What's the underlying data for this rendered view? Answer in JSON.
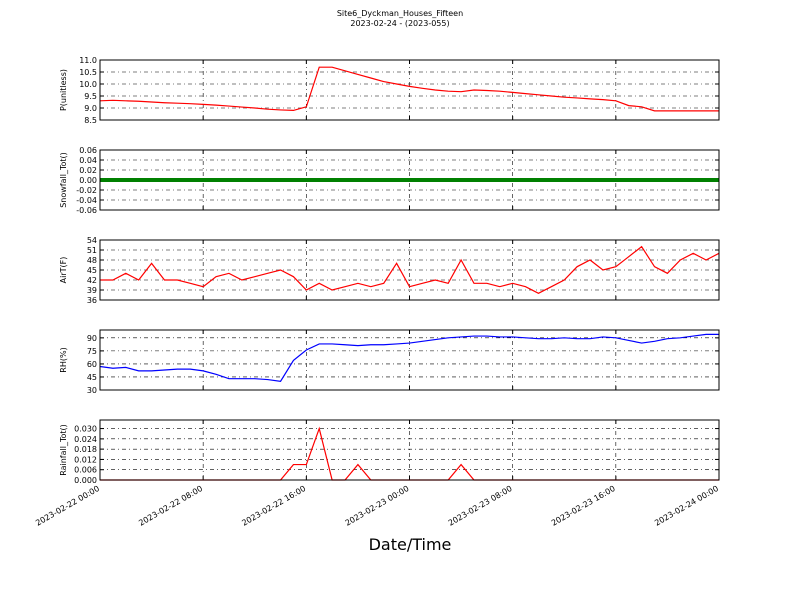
{
  "chart_data": [
    {
      "type": "line",
      "title": "Site6_Dyckman_Houses_Fifteen",
      "subtitle": "2023-02-24 - (2023-055)",
      "ylabel": "P(unitless)",
      "color": "#ff0000",
      "grid": true,
      "x": [
        "2023-02-22 00:00",
        "2023-02-22 01:00",
        "2023-02-22 02:00",
        "2023-02-22 03:00",
        "2023-02-22 04:00",
        "2023-02-22 05:00",
        "2023-02-22 06:00",
        "2023-02-22 07:00",
        "2023-02-22 08:00",
        "2023-02-22 09:00",
        "2023-02-22 10:00",
        "2023-02-22 11:00",
        "2023-02-22 12:00",
        "2023-02-22 13:00",
        "2023-02-22 14:00",
        "2023-02-22 15:00",
        "2023-02-22 16:00",
        "2023-02-22 17:00",
        "2023-02-22 18:00",
        "2023-02-22 19:00",
        "2023-02-22 20:00",
        "2023-02-22 21:00",
        "2023-02-22 22:00",
        "2023-02-22 23:00",
        "2023-02-23 00:00",
        "2023-02-23 01:00",
        "2023-02-23 02:00",
        "2023-02-23 03:00",
        "2023-02-23 04:00",
        "2023-02-23 05:00",
        "2023-02-23 06:00",
        "2023-02-23 07:00",
        "2023-02-23 08:00",
        "2023-02-23 09:00",
        "2023-02-23 10:00",
        "2023-02-23 11:00",
        "2023-02-23 12:00",
        "2023-02-23 13:00",
        "2023-02-23 14:00",
        "2023-02-23 15:00",
        "2023-02-23 16:00",
        "2023-02-23 17:00",
        "2023-02-23 18:00",
        "2023-02-23 19:00",
        "2023-02-23 20:00",
        "2023-02-23 21:00",
        "2023-02-23 22:00",
        "2023-02-23 23:00",
        "2023-02-24 00:00"
      ],
      "values": [
        9.3,
        9.32,
        9.3,
        9.28,
        9.25,
        9.22,
        9.2,
        9.18,
        9.15,
        9.12,
        9.08,
        9.04,
        9.0,
        8.95,
        8.92,
        8.9,
        9.05,
        10.7,
        10.7,
        10.55,
        10.4,
        10.25,
        10.1,
        10.0,
        9.9,
        9.82,
        9.75,
        9.7,
        9.68,
        9.75,
        9.73,
        9.7,
        9.65,
        9.6,
        9.55,
        9.5,
        9.45,
        9.42,
        9.38,
        9.35,
        9.3,
        9.1,
        9.05,
        8.88,
        8.88,
        8.88,
        8.88,
        8.88,
        8.88
      ],
      "xlim": [
        "2023-02-22 00:00",
        "2023-02-24 00:00"
      ],
      "xticks": [
        "2023-02-22 00:00",
        "2023-02-22 08:00",
        "2023-02-22 16:00",
        "2023-02-23 00:00",
        "2023-02-23 08:00",
        "2023-02-23 16:00",
        "2023-02-24 00:00"
      ],
      "ylim": [
        8.5,
        11.0
      ],
      "yticks": [
        8.5,
        {
          "value": 9,
          "label": "9.0"
        },
        9.5,
        {
          "value": 10,
          "label": "10.0"
        },
        10.5,
        {
          "value": 11,
          "label": "11.0"
        }
      ]
    },
    {
      "type": "line",
      "ylabel": "Snowfall_Tot()",
      "color": "#008000",
      "grid": true,
      "x": [
        "2023-02-22 00:00",
        "2023-02-22 01:00",
        "2023-02-22 02:00",
        "2023-02-22 03:00",
        "2023-02-22 04:00",
        "2023-02-22 05:00",
        "2023-02-22 06:00",
        "2023-02-22 07:00",
        "2023-02-22 08:00",
        "2023-02-22 09:00",
        "2023-02-22 10:00",
        "2023-02-22 11:00",
        "2023-02-22 12:00",
        "2023-02-22 13:00",
        "2023-02-22 14:00",
        "2023-02-22 15:00",
        "2023-02-22 16:00",
        "2023-02-22 17:00",
        "2023-02-22 18:00",
        "2023-02-22 19:00",
        "2023-02-22 20:00",
        "2023-02-22 21:00",
        "2023-02-22 22:00",
        "2023-02-22 23:00",
        "2023-02-23 00:00",
        "2023-02-23 01:00",
        "2023-02-23 02:00",
        "2023-02-23 03:00",
        "2023-02-23 04:00",
        "2023-02-23 05:00",
        "2023-02-23 06:00",
        "2023-02-23 07:00",
        "2023-02-23 08:00",
        "2023-02-23 09:00",
        "2023-02-23 10:00",
        "2023-02-23 11:00",
        "2023-02-23 12:00",
        "2023-02-23 13:00",
        "2023-02-23 14:00",
        "2023-02-23 15:00",
        "2023-02-23 16:00",
        "2023-02-23 17:00",
        "2023-02-23 18:00",
        "2023-02-23 19:00",
        "2023-02-23 20:00",
        "2023-02-23 21:00",
        "2023-02-23 22:00",
        "2023-02-23 23:00",
        "2023-02-24 00:00"
      ],
      "values": [
        0,
        0,
        0,
        0,
        0,
        0,
        0,
        0,
        0,
        0,
        0,
        0,
        0,
        0,
        0,
        0,
        0,
        0,
        0,
        0,
        0,
        0,
        0,
        0,
        0,
        0,
        0,
        0,
        0,
        0,
        0,
        0,
        0,
        0,
        0,
        0,
        0,
        0,
        0,
        0,
        0,
        0,
        0,
        0,
        0,
        0,
        0,
        0,
        0
      ],
      "xlim": [
        "2023-02-22 00:00",
        "2023-02-24 00:00"
      ],
      "xticks": [
        "2023-02-22 00:00",
        "2023-02-22 08:00",
        "2023-02-22 16:00",
        "2023-02-23 00:00",
        "2023-02-23 08:00",
        "2023-02-23 16:00",
        "2023-02-24 00:00"
      ],
      "ylim": [
        -0.06,
        0.06
      ],
      "yticks": [
        -0.06,
        -0.04,
        -0.02,
        {
          "value": 0,
          "label": "0.00"
        },
        0.02,
        0.04,
        0.06
      ]
    },
    {
      "type": "line",
      "ylabel": "AirT(F)",
      "color": "#ff0000",
      "grid": true,
      "x": [
        "2023-02-22 00:00",
        "2023-02-22 01:00",
        "2023-02-22 02:00",
        "2023-02-22 03:00",
        "2023-02-22 04:00",
        "2023-02-22 05:00",
        "2023-02-22 06:00",
        "2023-02-22 07:00",
        "2023-02-22 08:00",
        "2023-02-22 09:00",
        "2023-02-22 10:00",
        "2023-02-22 11:00",
        "2023-02-22 12:00",
        "2023-02-22 13:00",
        "2023-02-22 14:00",
        "2023-02-22 15:00",
        "2023-02-22 16:00",
        "2023-02-22 17:00",
        "2023-02-22 18:00",
        "2023-02-22 19:00",
        "2023-02-22 20:00",
        "2023-02-22 21:00",
        "2023-02-22 22:00",
        "2023-02-22 23:00",
        "2023-02-23 00:00",
        "2023-02-23 01:00",
        "2023-02-23 02:00",
        "2023-02-23 03:00",
        "2023-02-23 04:00",
        "2023-02-23 05:00",
        "2023-02-23 06:00",
        "2023-02-23 07:00",
        "2023-02-23 08:00",
        "2023-02-23 09:00",
        "2023-02-23 10:00",
        "2023-02-23 11:00",
        "2023-02-23 12:00",
        "2023-02-23 13:00",
        "2023-02-23 14:00",
        "2023-02-23 15:00",
        "2023-02-23 16:00",
        "2023-02-23 17:00",
        "2023-02-23 18:00",
        "2023-02-23 19:00",
        "2023-02-23 20:00",
        "2023-02-23 21:00",
        "2023-02-23 22:00",
        "2023-02-23 23:00",
        "2023-02-24 00:00"
      ],
      "values": [
        42,
        42,
        44,
        42,
        47,
        42,
        42,
        41,
        40,
        43,
        44,
        42,
        43,
        44,
        45,
        43,
        39,
        41,
        39,
        40,
        41,
        40,
        41,
        47,
        40,
        41,
        42,
        41,
        48,
        41,
        41,
        40,
        41,
        40,
        38,
        40,
        42,
        46,
        48,
        45,
        46,
        49,
        52,
        46,
        44,
        48,
        50,
        48,
        50
      ],
      "xlim": [
        "2023-02-22 00:00",
        "2023-02-24 00:00"
      ],
      "xticks": [
        "2023-02-22 00:00",
        "2023-02-22 08:00",
        "2023-02-22 16:00",
        "2023-02-23 00:00",
        "2023-02-23 08:00",
        "2023-02-23 16:00",
        "2023-02-24 00:00"
      ],
      "ylim": [
        36,
        54
      ],
      "yticks": [
        36,
        39,
        42,
        45,
        48,
        51,
        54
      ]
    },
    {
      "type": "line",
      "ylabel": "RH(%)",
      "color": "#0000ff",
      "grid": true,
      "x": [
        "2023-02-22 00:00",
        "2023-02-22 01:00",
        "2023-02-22 02:00",
        "2023-02-22 03:00",
        "2023-02-22 04:00",
        "2023-02-22 05:00",
        "2023-02-22 06:00",
        "2023-02-22 07:00",
        "2023-02-22 08:00",
        "2023-02-22 09:00",
        "2023-02-22 10:00",
        "2023-02-22 11:00",
        "2023-02-22 12:00",
        "2023-02-22 13:00",
        "2023-02-22 14:00",
        "2023-02-22 15:00",
        "2023-02-22 16:00",
        "2023-02-22 17:00",
        "2023-02-22 18:00",
        "2023-02-22 19:00",
        "2023-02-22 20:00",
        "2023-02-22 21:00",
        "2023-02-22 22:00",
        "2023-02-22 23:00",
        "2023-02-23 00:00",
        "2023-02-23 01:00",
        "2023-02-23 02:00",
        "2023-02-23 03:00",
        "2023-02-23 04:00",
        "2023-02-23 05:00",
        "2023-02-23 06:00",
        "2023-02-23 07:00",
        "2023-02-23 08:00",
        "2023-02-23 09:00",
        "2023-02-23 10:00",
        "2023-02-23 11:00",
        "2023-02-23 12:00",
        "2023-02-23 13:00",
        "2023-02-23 14:00",
        "2023-02-23 15:00",
        "2023-02-23 16:00",
        "2023-02-23 17:00",
        "2023-02-23 18:00",
        "2023-02-23 19:00",
        "2023-02-23 20:00",
        "2023-02-23 21:00",
        "2023-02-23 22:00",
        "2023-02-23 23:00",
        "2023-02-24 00:00"
      ],
      "values": [
        57,
        55,
        56,
        52,
        52,
        53,
        54,
        54,
        52,
        48,
        43,
        43,
        43,
        42,
        40,
        64,
        76,
        83,
        83,
        82,
        81,
        82,
        82,
        83,
        84,
        86,
        88,
        90,
        91,
        92,
        92,
        91,
        91,
        90,
        89,
        89,
        90,
        89,
        89,
        91,
        90,
        87,
        84,
        86,
        89,
        90,
        92,
        94,
        94
      ],
      "xlim": [
        "2023-02-22 00:00",
        "2023-02-24 00:00"
      ],
      "xticks": [
        "2023-02-22 00:00",
        "2023-02-22 08:00",
        "2023-02-22 16:00",
        "2023-02-23 00:00",
        "2023-02-23 08:00",
        "2023-02-23 16:00",
        "2023-02-24 00:00"
      ],
      "ylim": [
        30,
        99
      ],
      "yticks": [
        30,
        45,
        60,
        75,
        90
      ]
    },
    {
      "type": "line",
      "ylabel": "Rainfall_Tot()",
      "xlabel": "Date/Time",
      "color": "#ff0000",
      "grid": true,
      "x": [
        "2023-02-22 00:00",
        "2023-02-22 01:00",
        "2023-02-22 02:00",
        "2023-02-22 03:00",
        "2023-02-22 04:00",
        "2023-02-22 05:00",
        "2023-02-22 06:00",
        "2023-02-22 07:00",
        "2023-02-22 08:00",
        "2023-02-22 09:00",
        "2023-02-22 10:00",
        "2023-02-22 11:00",
        "2023-02-22 12:00",
        "2023-02-22 13:00",
        "2023-02-22 14:00",
        "2023-02-22 15:00",
        "2023-02-22 16:00",
        "2023-02-22 17:00",
        "2023-02-22 18:00",
        "2023-02-22 19:00",
        "2023-02-22 20:00",
        "2023-02-22 21:00",
        "2023-02-22 22:00",
        "2023-02-22 23:00",
        "2023-02-23 00:00",
        "2023-02-23 01:00",
        "2023-02-23 02:00",
        "2023-02-23 03:00",
        "2023-02-23 04:00",
        "2023-02-23 05:00",
        "2023-02-23 06:00",
        "2023-02-23 07:00",
        "2023-02-23 08:00",
        "2023-02-23 09:00",
        "2023-02-23 10:00",
        "2023-02-23 11:00",
        "2023-02-23 12:00",
        "2023-02-23 13:00",
        "2023-02-23 14:00",
        "2023-02-23 15:00",
        "2023-02-23 16:00",
        "2023-02-23 17:00",
        "2023-02-23 18:00",
        "2023-02-23 19:00",
        "2023-02-23 20:00",
        "2023-02-23 21:00",
        "2023-02-23 22:00",
        "2023-02-23 23:00",
        "2023-02-24 00:00"
      ],
      "values": [
        0,
        0,
        0,
        0,
        0,
        0,
        0,
        0,
        0,
        0,
        0,
        0,
        0,
        0,
        0,
        0.009,
        0.009,
        0.03,
        0,
        0,
        0.009,
        0,
        0,
        0,
        0,
        0,
        0,
        0,
        0.009,
        0,
        0,
        0,
        0,
        0,
        0,
        0,
        0,
        0,
        0,
        0,
        0,
        0,
        0,
        0,
        0,
        0,
        0,
        0,
        0
      ],
      "xlim": [
        "2023-02-22 00:00",
        "2023-02-24 00:00"
      ],
      "xticks": [
        "2023-02-22 00:00",
        "2023-02-22 08:00",
        "2023-02-22 16:00",
        "2023-02-23 00:00",
        "2023-02-23 08:00",
        "2023-02-23 16:00",
        "2023-02-24 00:00"
      ],
      "ylim": [
        0,
        0.035
      ],
      "yticks": [
        {
          "value": 0,
          "label": "0.000"
        },
        {
          "value": 0.006,
          "label": "0.006"
        },
        {
          "value": 0.012,
          "label": "0.012"
        },
        {
          "value": 0.018,
          "label": "0.018"
        },
        {
          "value": 0.024,
          "label": "0.024"
        },
        {
          "value": 0.03,
          "label": "0.030"
        }
      ]
    }
  ]
}
